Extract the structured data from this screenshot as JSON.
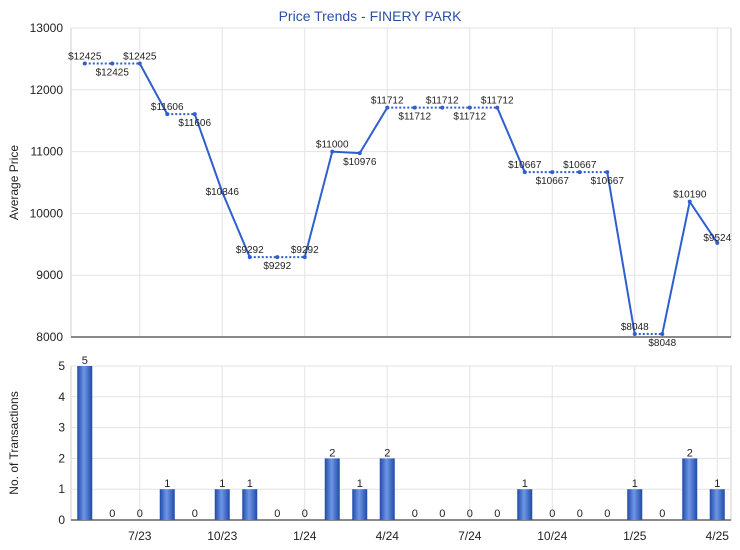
{
  "chart_data": [
    {
      "type": "line",
      "title": "Price Trends - FINERY PARK",
      "ylabel": "Average Price",
      "ylim": [
        8000,
        13000
      ],
      "yticks": [
        "8000",
        "9000",
        "10000",
        "11000",
        "12000",
        "13000"
      ],
      "grid": true,
      "x_index": [
        0.0,
        1.0,
        2.0,
        3.0,
        4.0,
        5.0,
        6.0,
        7.0,
        8.0,
        9.0,
        10.0,
        11.0,
        12.0,
        13.0,
        14.0,
        15.0,
        16.0,
        17.0,
        18.0,
        19.0,
        20.0,
        21.0,
        22.0,
        23.0,
        24.0
      ],
      "values": [
        12425,
        12425,
        12425,
        11606,
        11606,
        10346,
        9292,
        9292,
        9292,
        11000,
        10976,
        11712,
        11712,
        11712,
        11712,
        11712,
        10667,
        10667,
        10667,
        10667,
        8048,
        8048,
        10190,
        9524
      ],
      "data_labels": [
        "$12425",
        "$12425",
        "$12425",
        "$11606",
        "$11606",
        "$10346",
        "$9292",
        "$9292",
        "$9292",
        "$11000",
        "$10976",
        "$11712",
        "$11712",
        "$11712",
        "$11712",
        "$11712",
        "$10667",
        "$10667",
        "$10667",
        "$10667",
        "$8048",
        "$8048",
        "$10190",
        "$9524"
      ],
      "x_positions": [
        0,
        1,
        2,
        3,
        4,
        5,
        6,
        7,
        8,
        9,
        10,
        11,
        12,
        13,
        14,
        15,
        16,
        17,
        18,
        19,
        20,
        21,
        22,
        23
      ],
      "series_color": "#2f5fcf"
    },
    {
      "type": "bar",
      "ylabel": "No. of Transactions",
      "ylim": [
        0,
        5
      ],
      "yticks": [
        "0",
        "1",
        "2",
        "3",
        "4",
        "5"
      ],
      "categories": [
        "",
        "",
        "7/23",
        "",
        "",
        "10/23",
        "",
        "",
        "1/24",
        "",
        "",
        "4/24",
        "",
        "",
        "7/24",
        "",
        "",
        "10/24",
        "",
        "",
        "1/25",
        "",
        "",
        "4/25"
      ],
      "values": [
        5,
        0,
        0,
        1,
        0,
        1,
        1,
        0,
        0,
        2,
        1,
        2,
        0,
        0,
        0,
        0,
        1,
        0,
        0,
        0,
        1,
        0,
        2,
        1
      ],
      "data_labels": [
        "5",
        "0",
        "0",
        "1",
        "0",
        "1",
        "1",
        "0",
        "0",
        "2",
        "1",
        "2",
        "0",
        "0",
        "0",
        "0",
        "1",
        "0",
        "0",
        "0",
        "1",
        "0",
        "2",
        "1"
      ],
      "bar_color": "#3a66c8",
      "grid": true
    }
  ]
}
